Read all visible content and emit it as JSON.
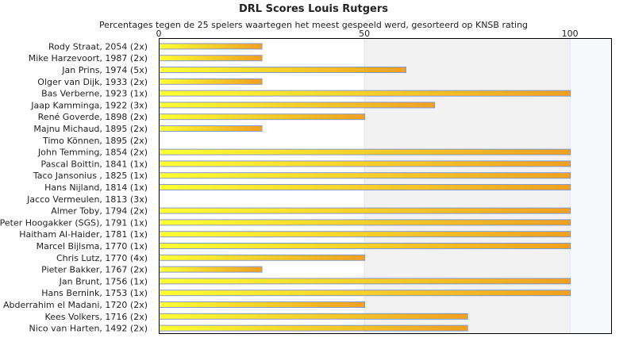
{
  "chart_data": {
    "type": "bar",
    "orientation": "horizontal",
    "title": "DRL Scores Louis Rutgers",
    "subtitle": "Percentages tegen de 25 spelers waartegen het meest gespeeld werd, gesorteerd op KNSB rating",
    "xlim": [
      0,
      110
    ],
    "xticks": [
      0,
      50,
      100
    ],
    "grid": true,
    "legend": "none",
    "categories": [
      "Rody Straat, 2054 (2x)",
      "Mike Harzevoort, 1987 (2x)",
      "Jan Prins, 1974 (5x)",
      "Olger van Dijk, 1933 (2x)",
      "Bas Verberne, 1923 (1x)",
      "Jaap Kamminga, 1922 (3x)",
      "René Goverde, 1898 (2x)",
      "Majnu Michaud, 1895 (2x)",
      "Timo Können, 1895 (2x)",
      "John Temming, 1854 (2x)",
      "Pascal Boittin, 1841 (1x)",
      "Taco Jansonius , 1825 (1x)",
      "Hans Nijland, 1814 (1x)",
      "Jacco Vermeulen, 1813 (3x)",
      "Almer Toby, 1794 (2x)",
      "Peter Hoogakker (SGS), 1791 (1x)",
      "Haitham Al-Haider, 1781 (1x)",
      "Marcel Bijlsma, 1770 (1x)",
      "Chris Lutz, 1770 (4x)",
      "Pieter Bakker, 1767 (2x)",
      "Jan Brunt, 1756 (1x)",
      "Hans Bernink, 1753 (1x)",
      "Abderrahim el Madani, 1720 (2x)",
      "Kees Volkers, 1716 (2x)",
      "Nico van Harten, 1492 (2x)"
    ],
    "values": [
      25,
      25,
      60,
      25,
      100,
      67,
      50,
      25,
      0,
      100,
      100,
      100,
      100,
      0,
      100,
      100,
      100,
      100,
      50,
      25,
      100,
      100,
      50,
      75,
      75
    ],
    "colors": {
      "bar_start": "#ffff33",
      "bar_end": "#f0a020",
      "bar_border": "#8899cc",
      "band_light": "#f2f2f2",
      "band_lighter": "#f7f8fc",
      "axis": "#000000"
    }
  }
}
